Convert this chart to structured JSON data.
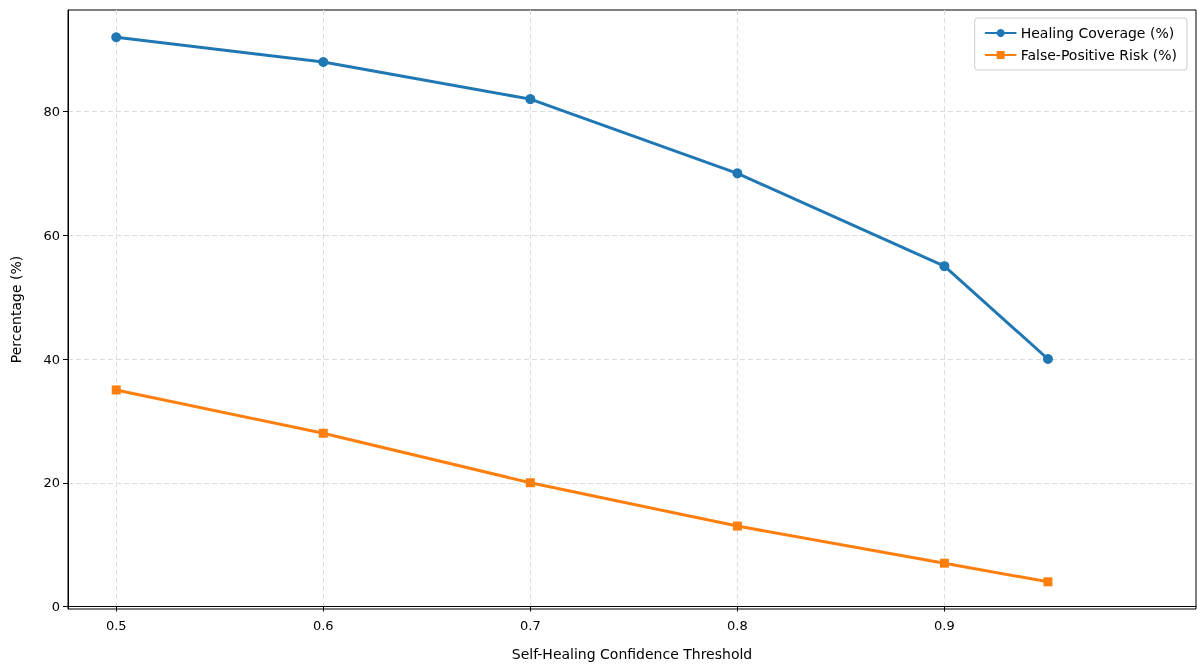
{
  "chart_data": {
    "type": "line",
    "xlabel": "Self-Healing Confidence Threshold",
    "ylabel": "Percentage (%)",
    "x": [
      0.5,
      0.6,
      0.7,
      0.8,
      0.9,
      0.95
    ],
    "series": [
      {
        "name": "Healing Coverage (%)",
        "color": "#1f77b4",
        "marker": "circle",
        "values": [
          92,
          88,
          82,
          70,
          55,
          40
        ]
      },
      {
        "name": "False-Positive Risk (%)",
        "color": "#ff7f0e",
        "marker": "square",
        "values": [
          35,
          28,
          20,
          13,
          7,
          4
        ]
      }
    ],
    "xlim": [
      0.4767,
      1.0215
    ],
    "xticks": [
      0.5,
      0.6,
      0.7,
      0.8,
      0.9
    ],
    "ylim": [
      -0.4,
      96.4
    ],
    "yticks": [
      0,
      20,
      40,
      60,
      80
    ],
    "grid": true,
    "legend": "top right",
    "line_style": "solid"
  }
}
